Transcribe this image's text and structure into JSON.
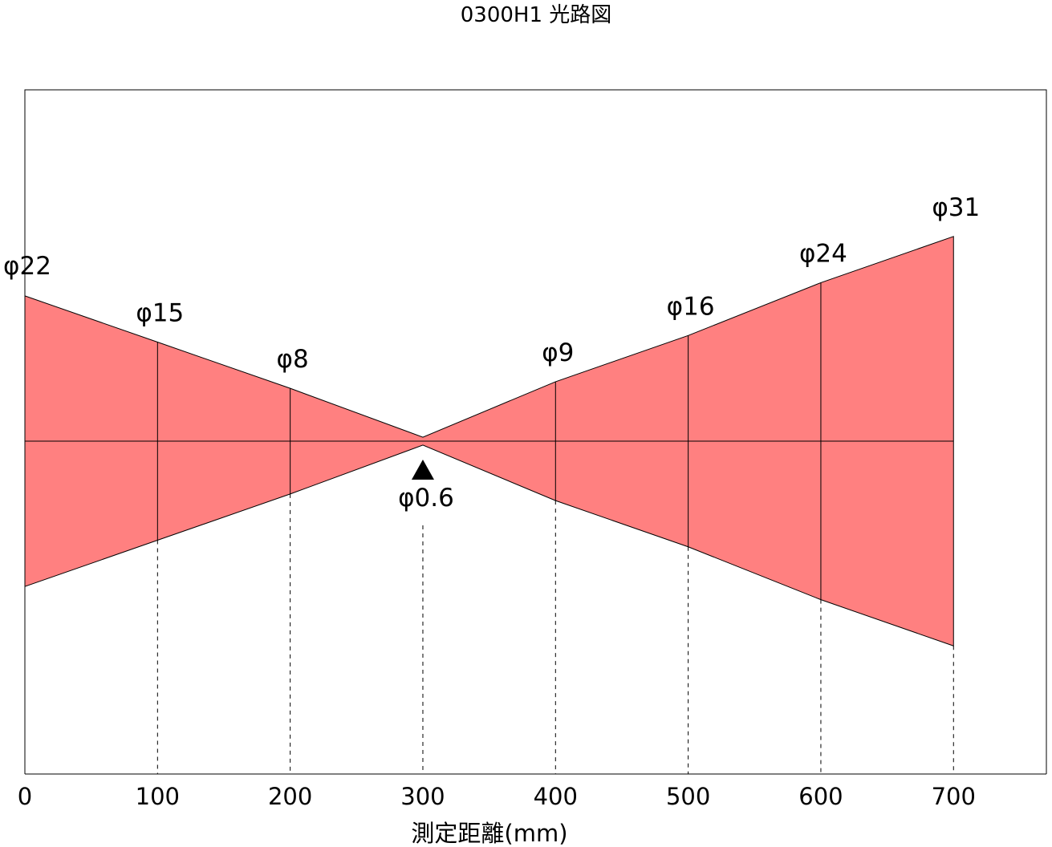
{
  "chart_data": {
    "type": "area",
    "title": "0300H1 光路図",
    "xlabel": "測定距離(mm)",
    "ylabel": "",
    "x_ticks": [
      "0",
      "100",
      "200",
      "300",
      "400",
      "500",
      "600",
      "700"
    ],
    "xlim": [
      0,
      770
    ],
    "ylim": [
      -25.2,
      26.6
    ],
    "focus_x": 300,
    "beam_color": "#ff8080",
    "points": [
      {
        "x": 0,
        "diameter": 22,
        "label": "φ22"
      },
      {
        "x": 100,
        "diameter": 15,
        "label": "φ15"
      },
      {
        "x": 200,
        "diameter": 8,
        "label": "φ8"
      },
      {
        "x": 300,
        "diameter": 0.6,
        "label": "φ0.6"
      },
      {
        "x": 400,
        "diameter": 9,
        "label": "φ9"
      },
      {
        "x": 500,
        "diameter": 16,
        "label": "φ16"
      },
      {
        "x": 600,
        "diameter": 24,
        "label": "φ24"
      },
      {
        "x": 700,
        "diameter": 31,
        "label": "φ31"
      }
    ]
  }
}
